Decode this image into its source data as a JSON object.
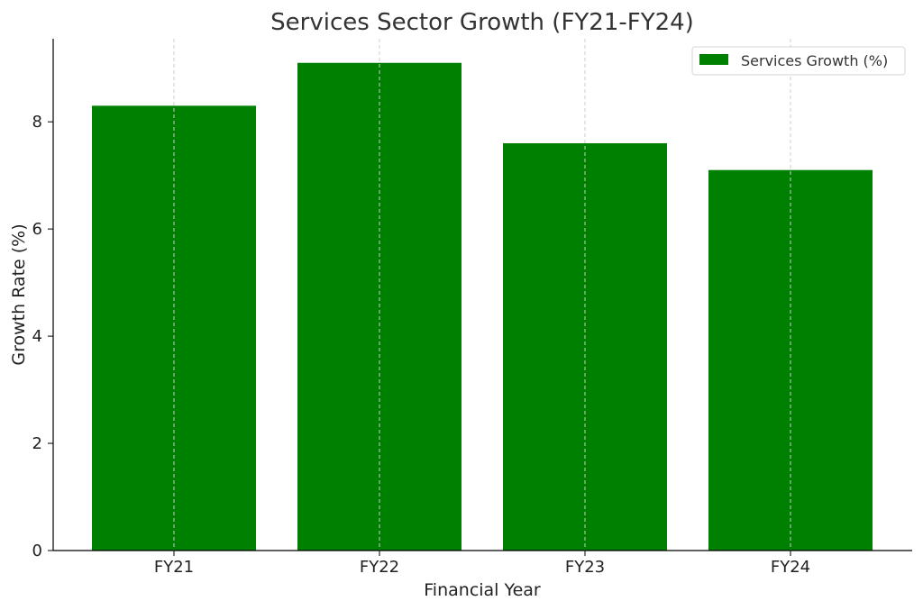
{
  "chart_data": {
    "type": "bar",
    "title": "Services Sector Growth (FY21-FY24)",
    "xlabel": "Financial Year",
    "ylabel": "Growth Rate (%)",
    "categories": [
      "FY21",
      "FY22",
      "FY23",
      "FY24"
    ],
    "series": [
      {
        "name": "Services Growth (%)",
        "values": [
          8.3,
          9.1,
          7.6,
          7.1
        ]
      }
    ],
    "ylim": [
      0,
      9.55
    ],
    "yticks": [
      0,
      2,
      4,
      6,
      8
    ],
    "grid": "vertical dashed",
    "legend_position": "top-right",
    "colors": {
      "bar": "#008000",
      "grid": "#cccccc",
      "axis": "#000000"
    }
  }
}
